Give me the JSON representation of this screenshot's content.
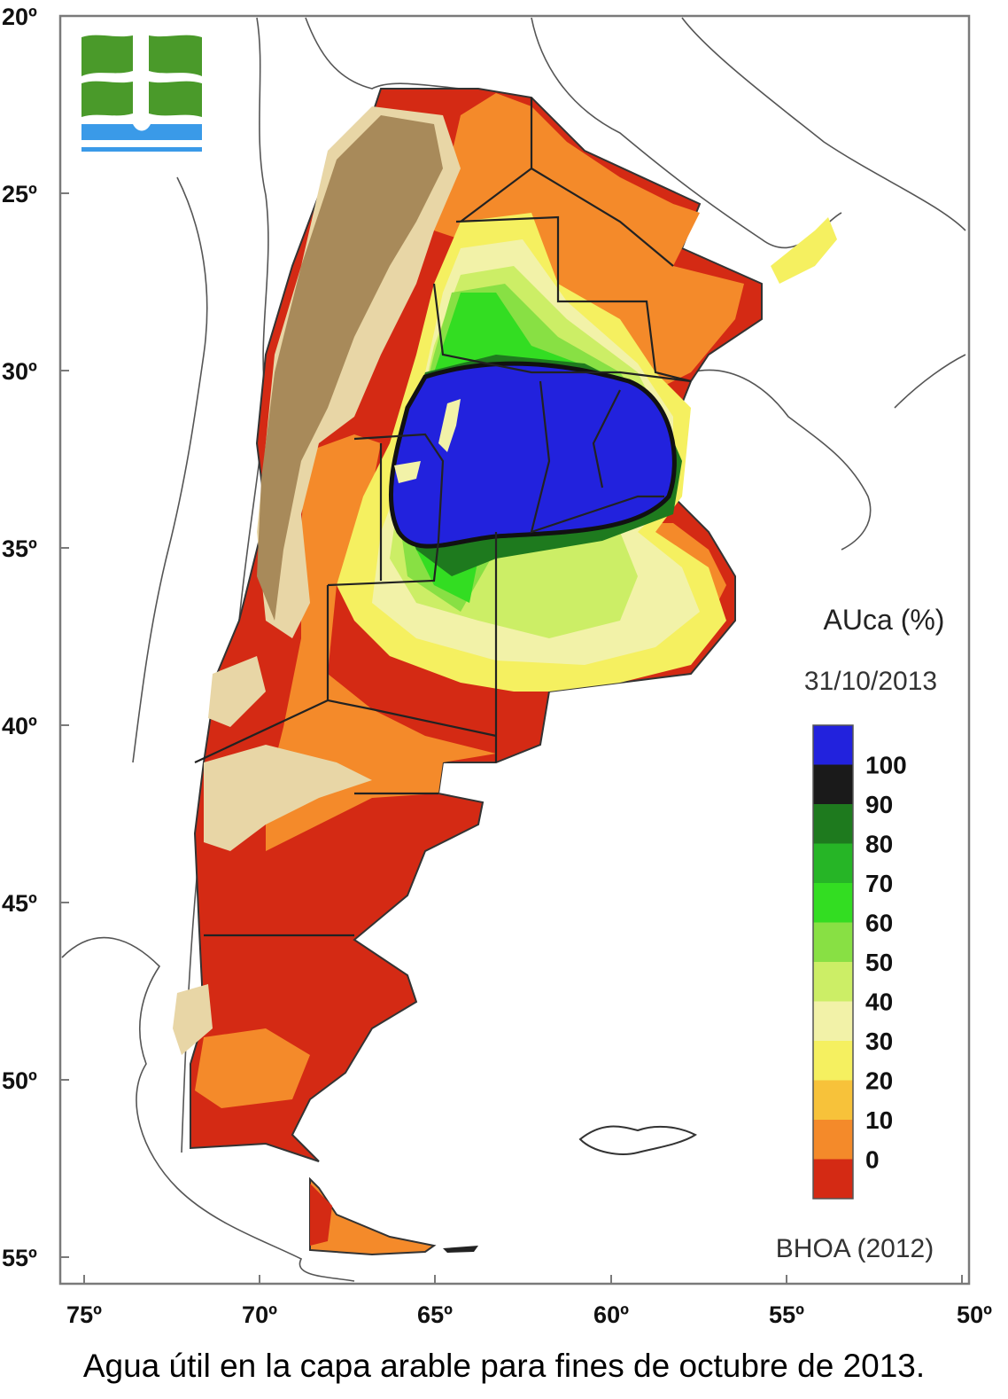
{
  "map": {
    "lat_labels": [
      "20º",
      "25º",
      "30º",
      "35º",
      "40º",
      "45º",
      "50º",
      "55º"
    ],
    "lon_labels": [
      "75º",
      "70º",
      "65º",
      "60º",
      "55º",
      "50º"
    ],
    "legend": {
      "title": "AUca (%)",
      "date": "31/10/2013",
      "classes": [
        {
          "label": "100",
          "color": "#2222dd"
        },
        {
          "label": "90",
          "color": "#1a1a1a"
        },
        {
          "label": "80",
          "color": "#1e7a1e"
        },
        {
          "label": "70",
          "color": "#26b526"
        },
        {
          "label": "60",
          "color": "#33dd22"
        },
        {
          "label": "50",
          "color": "#88e044"
        },
        {
          "label": "40",
          "color": "#ccee66"
        },
        {
          "label": "30",
          "color": "#f2f2a8"
        },
        {
          "label": "20",
          "color": "#f5f060"
        },
        {
          "label": "10",
          "color": "#f7c23a"
        },
        {
          "label": "0",
          "color": "#f48a2a"
        },
        {
          "label": "",
          "color": "#d42a14"
        }
      ]
    },
    "source": "BHOA (2012)",
    "colors": {
      "frame": "#7a7a7a",
      "coast": "#444444",
      "desert_brown": "#a88a5a",
      "desert_light": "#e8d6a6",
      "logo_green": "#4a9a2a",
      "logo_blue": "#3a9ae8"
    }
  },
  "caption": "Agua útil en la capa arable para fines de octubre de 2013."
}
